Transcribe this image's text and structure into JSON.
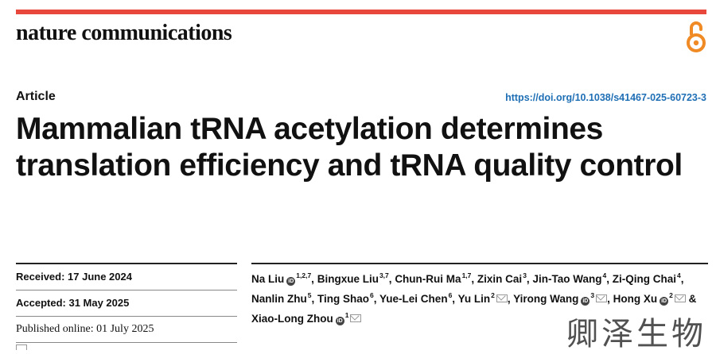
{
  "journal": {
    "name": "nature communications"
  },
  "article": {
    "type": "Article",
    "doi": "https://doi.org/10.1038/s41467-025-60723-3",
    "title": "Mammalian tRNA acetylation determines translation efficiency and tRNA quality control"
  },
  "dates": {
    "received": "Received: 17 June 2024",
    "accepted": "Accepted: 31 May 2025",
    "published": "Published online: 01 July 2025"
  },
  "authors": [
    {
      "name": "Na Liu",
      "sup": "1,2,7",
      "orcid": true,
      "mail": false,
      "sep": ","
    },
    {
      "name": "Bingxue Liu",
      "sup": "3,7",
      "orcid": false,
      "mail": false,
      "sep": ","
    },
    {
      "name": "Chun-Rui Ma",
      "sup": "1,7",
      "orcid": false,
      "mail": false,
      "sep": ","
    },
    {
      "name": "Zixin Cai",
      "sup": "3",
      "orcid": false,
      "mail": false,
      "sep": ","
    },
    {
      "name": "Jin-Tao Wang",
      "sup": "4",
      "orcid": false,
      "mail": false,
      "sep": ","
    },
    {
      "name": "Zi-Qing Chai",
      "sup": "4",
      "orcid": false,
      "mail": false,
      "sep": ","
    },
    {
      "name": "Nanlin Zhu",
      "sup": "5",
      "orcid": false,
      "mail": false,
      "sep": ","
    },
    {
      "name": "Ting Shao",
      "sup": "6",
      "orcid": false,
      "mail": false,
      "sep": ","
    },
    {
      "name": "Yue-Lei Chen",
      "sup": "6",
      "orcid": false,
      "mail": false,
      "sep": ","
    },
    {
      "name": "Yu Lin",
      "sup": "2",
      "orcid": false,
      "mail": true,
      "sep": ","
    },
    {
      "name": "Yirong Wang",
      "sup": "3",
      "orcid": true,
      "mail": true,
      "sep": ","
    },
    {
      "name": "Hong Xu",
      "sup": "2",
      "orcid": true,
      "mail": true,
      "sep": " &"
    },
    {
      "name": "Xiao-Long Zhou",
      "sup": "1",
      "orcid": true,
      "mail": true,
      "sep": ""
    }
  ],
  "watermark": "卿泽生物",
  "colors": {
    "brand_bar": "#e8473c",
    "link": "#1f6fb5",
    "open_access": "#f08a24"
  }
}
